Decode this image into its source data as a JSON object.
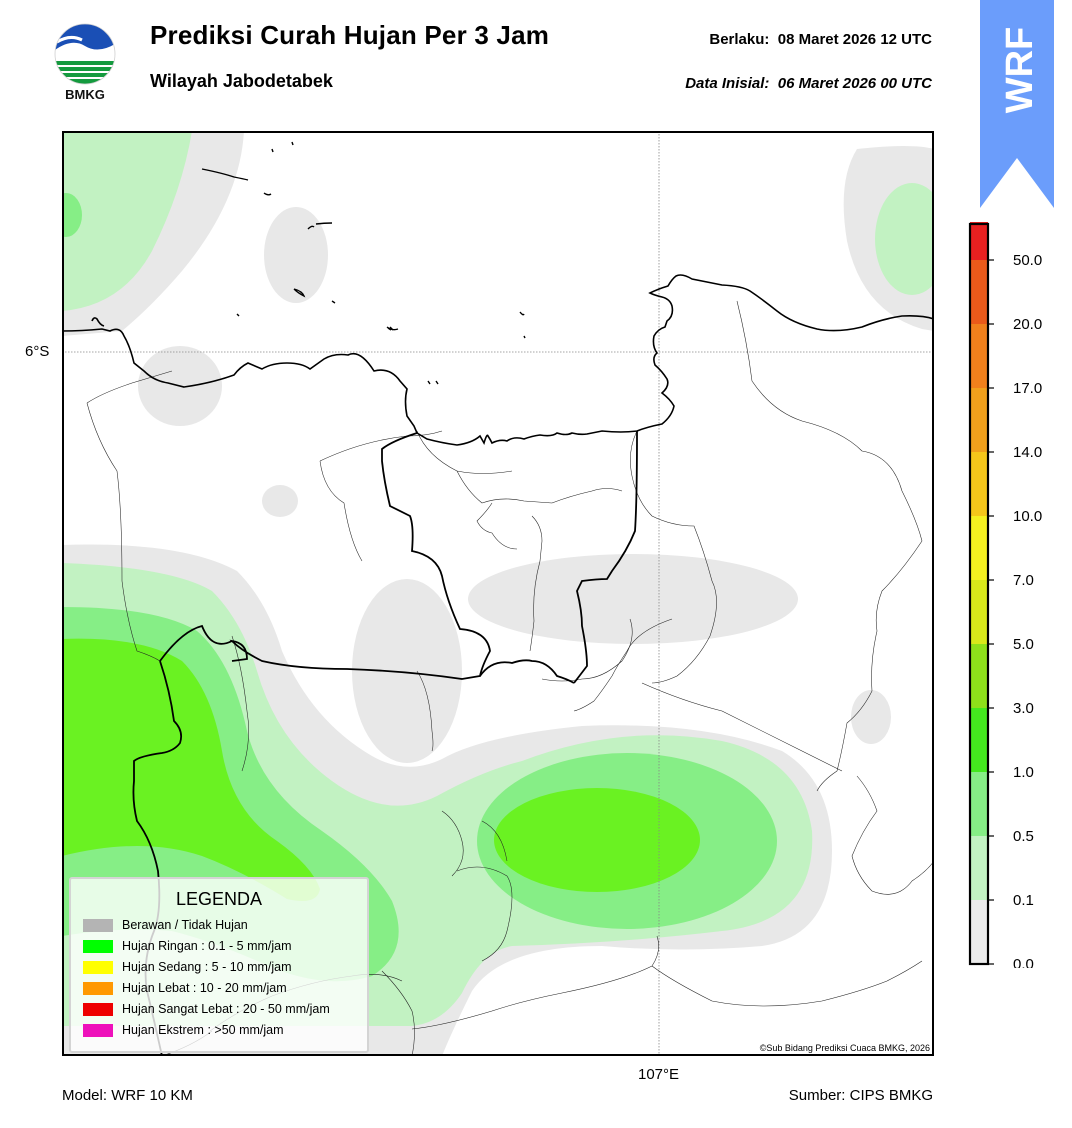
{
  "header": {
    "title": "Prediksi Curah Hujan Per 3 Jam",
    "subtitle": "Wilayah Jabodetabek",
    "valid_label": "Berlaku:",
    "valid_time": "08 Maret 2026 12 UTC",
    "init_label": "Data Inisial:",
    "init_time": "06 Maret 2026 00 UTC"
  },
  "logo": {
    "text": "BMKG"
  },
  "banner": {
    "text": "WRF",
    "color": "#6b9dfb"
  },
  "map": {
    "lat_label": "6°S",
    "lon_label": "107°E",
    "copyright": "©Sub Bidang Prediksi Cuaca BMKG, 2026"
  },
  "legend": {
    "title": "LEGENDA",
    "items": [
      {
        "label": "Berawan / Tidak Hujan",
        "color": "#b4b4b4"
      },
      {
        "label": "Hujan Ringan : 0.1 - 5 mm/jam",
        "color": "#00ff00"
      },
      {
        "label": "Hujan Sedang : 5 - 10 mm/jam",
        "color": "#ffff00"
      },
      {
        "label": "Hujan Lebat : 10 - 20 mm/jam",
        "color": "#ff9900"
      },
      {
        "label": "Hujan Sangat Lebat : 20 - 50 mm/jam",
        "color": "#ee0000"
      },
      {
        "label": "Hujan Ekstrem : >50 mm/jam",
        "color": "#ee11bb"
      }
    ]
  },
  "colorbar": {
    "ticks": [
      "0.0",
      "0.1",
      "0.5",
      "1.0",
      "3.0",
      "5.0",
      "7.0",
      "10.0",
      "14.0",
      "17.0",
      "20.0",
      "50.0"
    ],
    "colors": [
      "#ebebeb",
      "#c2f2c2",
      "#86ee86",
      "#44e81e",
      "#8ee01a",
      "#d8e81a",
      "#f5f020",
      "#f5c61a",
      "#f0a01c",
      "#f0801c",
      "#ea5a1a",
      "#e82020",
      "#e61ebe"
    ]
  },
  "footer": {
    "model": "Model: WRF 10 KM",
    "source": "Sumber: CIPS BMKG"
  }
}
